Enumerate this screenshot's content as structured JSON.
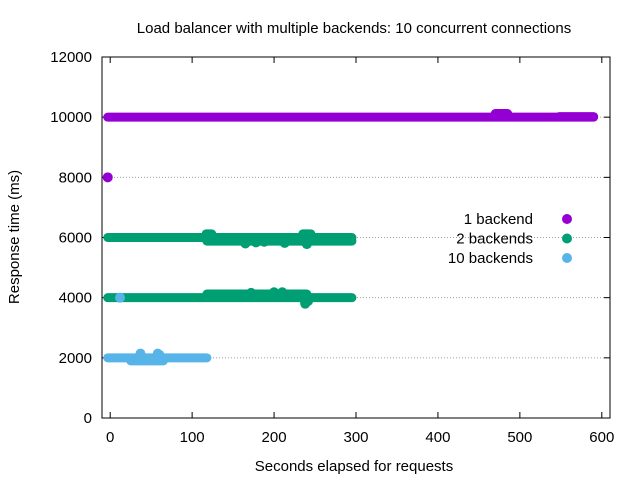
{
  "chart_data": {
    "type": "scatter",
    "title": "Load balancer with multiple backends: 10 concurrent connections",
    "xlabel": "Seconds elapsed for requests",
    "ylabel": "Response time (ms)",
    "xlim": [
      -10,
      610
    ],
    "ylim": [
      0,
      12000
    ],
    "x_ticks": [
      0,
      100,
      200,
      300,
      400,
      500,
      600
    ],
    "y_ticks": [
      0,
      2000,
      4000,
      6000,
      8000,
      10000,
      12000
    ],
    "grid": "horizontal-dotted",
    "legend_position": "right-middle",
    "series": [
      {
        "name": "1 backend",
        "color": "#9400d3",
        "bands": [
          {
            "y": 10000,
            "x_start": -3,
            "x_end": 590
          },
          {
            "y": 10120,
            "x_start": 470,
            "x_end": 485
          },
          {
            "y": 10020,
            "x_start": 548,
            "x_end": 590
          }
        ],
        "points": [
          {
            "x": -3,
            "y": 8000
          }
        ]
      },
      {
        "name": "2 backends",
        "color": "#009e73",
        "bands": [
          {
            "y": 6000,
            "x_start": -3,
            "x_end": 295
          },
          {
            "y": 5880,
            "x_start": 118,
            "x_end": 295
          },
          {
            "y": 6120,
            "x_start": 117,
            "x_end": 124
          },
          {
            "y": 6120,
            "x_start": 235,
            "x_end": 245
          },
          {
            "y": 4000,
            "x_start": -3,
            "x_end": 295
          },
          {
            "y": 4120,
            "x_start": 118,
            "x_end": 240
          },
          {
            "y": 3880,
            "x_start": 237,
            "x_end": 242
          }
        ],
        "points": [
          {
            "x": 165,
            "y": 5800
          },
          {
            "x": 178,
            "y": 5840
          },
          {
            "x": 188,
            "y": 5860
          },
          {
            "x": 213,
            "y": 5820
          },
          {
            "x": 240,
            "y": 5780
          },
          {
            "x": 172,
            "y": 4160
          },
          {
            "x": 200,
            "y": 4180
          },
          {
            "x": 210,
            "y": 4180
          },
          {
            "x": 238,
            "y": 3800
          }
        ]
      },
      {
        "name": "10 backends",
        "color": "#56b4e9",
        "bands": [
          {
            "y": 2000,
            "x_start": -3,
            "x_end": 118
          },
          {
            "y": 1900,
            "x_start": 25,
            "x_end": 65
          }
        ],
        "points": [
          {
            "x": 12,
            "y": 4000
          },
          {
            "x": 37,
            "y": 2140
          },
          {
            "x": 58,
            "y": 2140
          },
          {
            "x": 60,
            "y": 2100
          }
        ]
      }
    ]
  }
}
